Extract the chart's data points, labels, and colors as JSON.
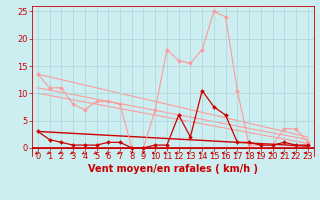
{
  "bg_color": "#cceef0",
  "grid_color": "#aad4d8",
  "line_color_dark": "#cc0000",
  "line_color_light": "#ff9999",
  "xlabel": "Vent moyen/en rafales ( km/h )",
  "ylabel_ticks": [
    0,
    5,
    10,
    15,
    20,
    25
  ],
  "xlim": [
    -0.5,
    23.5
  ],
  "ylim": [
    -1.5,
    26
  ],
  "x_ticks": [
    0,
    1,
    2,
    3,
    4,
    5,
    6,
    7,
    8,
    9,
    10,
    11,
    12,
    13,
    14,
    15,
    16,
    17,
    18,
    19,
    20,
    21,
    22,
    23
  ],
  "series_dark": {
    "x": [
      0,
      1,
      2,
      3,
      4,
      5,
      6,
      7,
      8,
      9,
      10,
      11,
      12,
      13,
      14,
      15,
      16,
      17,
      18,
      19,
      20,
      21,
      22,
      23
    ],
    "y": [
      3.0,
      1.5,
      1.0,
      0.5,
      0.5,
      0.5,
      1.0,
      1.0,
      0.0,
      0.0,
      0.5,
      0.5,
      6.0,
      2.0,
      10.5,
      7.5,
      6.0,
      1.0,
      1.0,
      0.5,
      0.5,
      1.0,
      0.5,
      0.5
    ]
  },
  "series_light": {
    "x": [
      0,
      1,
      2,
      3,
      4,
      5,
      6,
      7,
      8,
      9,
      10,
      11,
      12,
      13,
      14,
      15,
      16,
      17,
      18,
      19,
      20,
      21,
      22,
      23
    ],
    "y": [
      13.5,
      11.0,
      11.0,
      8.0,
      7.0,
      8.5,
      8.5,
      8.0,
      0.0,
      0.0,
      7.0,
      18.0,
      16.0,
      15.5,
      18.0,
      25.0,
      24.0,
      10.5,
      0.5,
      0.5,
      0.5,
      3.5,
      3.5,
      1.0
    ]
  },
  "trend_light": [
    {
      "x": [
        0,
        23
      ],
      "y": [
        13.5,
        2.0
      ]
    },
    {
      "x": [
        0,
        23
      ],
      "y": [
        11.0,
        1.5
      ]
    },
    {
      "x": [
        0,
        23
      ],
      "y": [
        10.0,
        0.8
      ]
    }
  ],
  "trend_dark": {
    "x": [
      0,
      23
    ],
    "y": [
      3.0,
      0.3
    ]
  },
  "xlabel_fontsize": 7,
  "tick_fontsize": 6,
  "ylabel_fontsize": 6
}
